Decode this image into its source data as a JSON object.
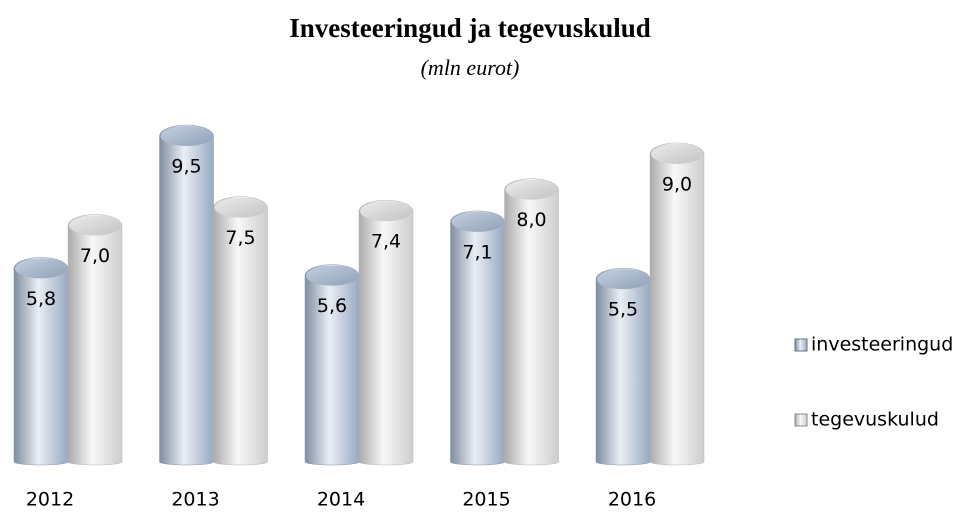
{
  "chart_data": {
    "type": "bar",
    "title": "Investeeringud ja tegevuskulud",
    "subtitle": "(mln eurot)",
    "categories": [
      "2012",
      "2013",
      "2014",
      "2015",
      "2016"
    ],
    "series": [
      {
        "name": "investeeringud",
        "color": "#a9bcd6",
        "values": [
          5.8,
          9.5,
          5.6,
          7.1,
          5.5
        ],
        "value_labels": [
          "5,8",
          "9,5",
          "5,6",
          "7,1",
          "5,5"
        ]
      },
      {
        "name": "tegevuskulud",
        "color": "#e4e4e4",
        "values": [
          7.0,
          7.5,
          7.4,
          8.0,
          9.0
        ],
        "value_labels": [
          "7,0",
          "7,5",
          "7,4",
          "8,0",
          "9,0"
        ]
      }
    ],
    "legend": "right"
  }
}
